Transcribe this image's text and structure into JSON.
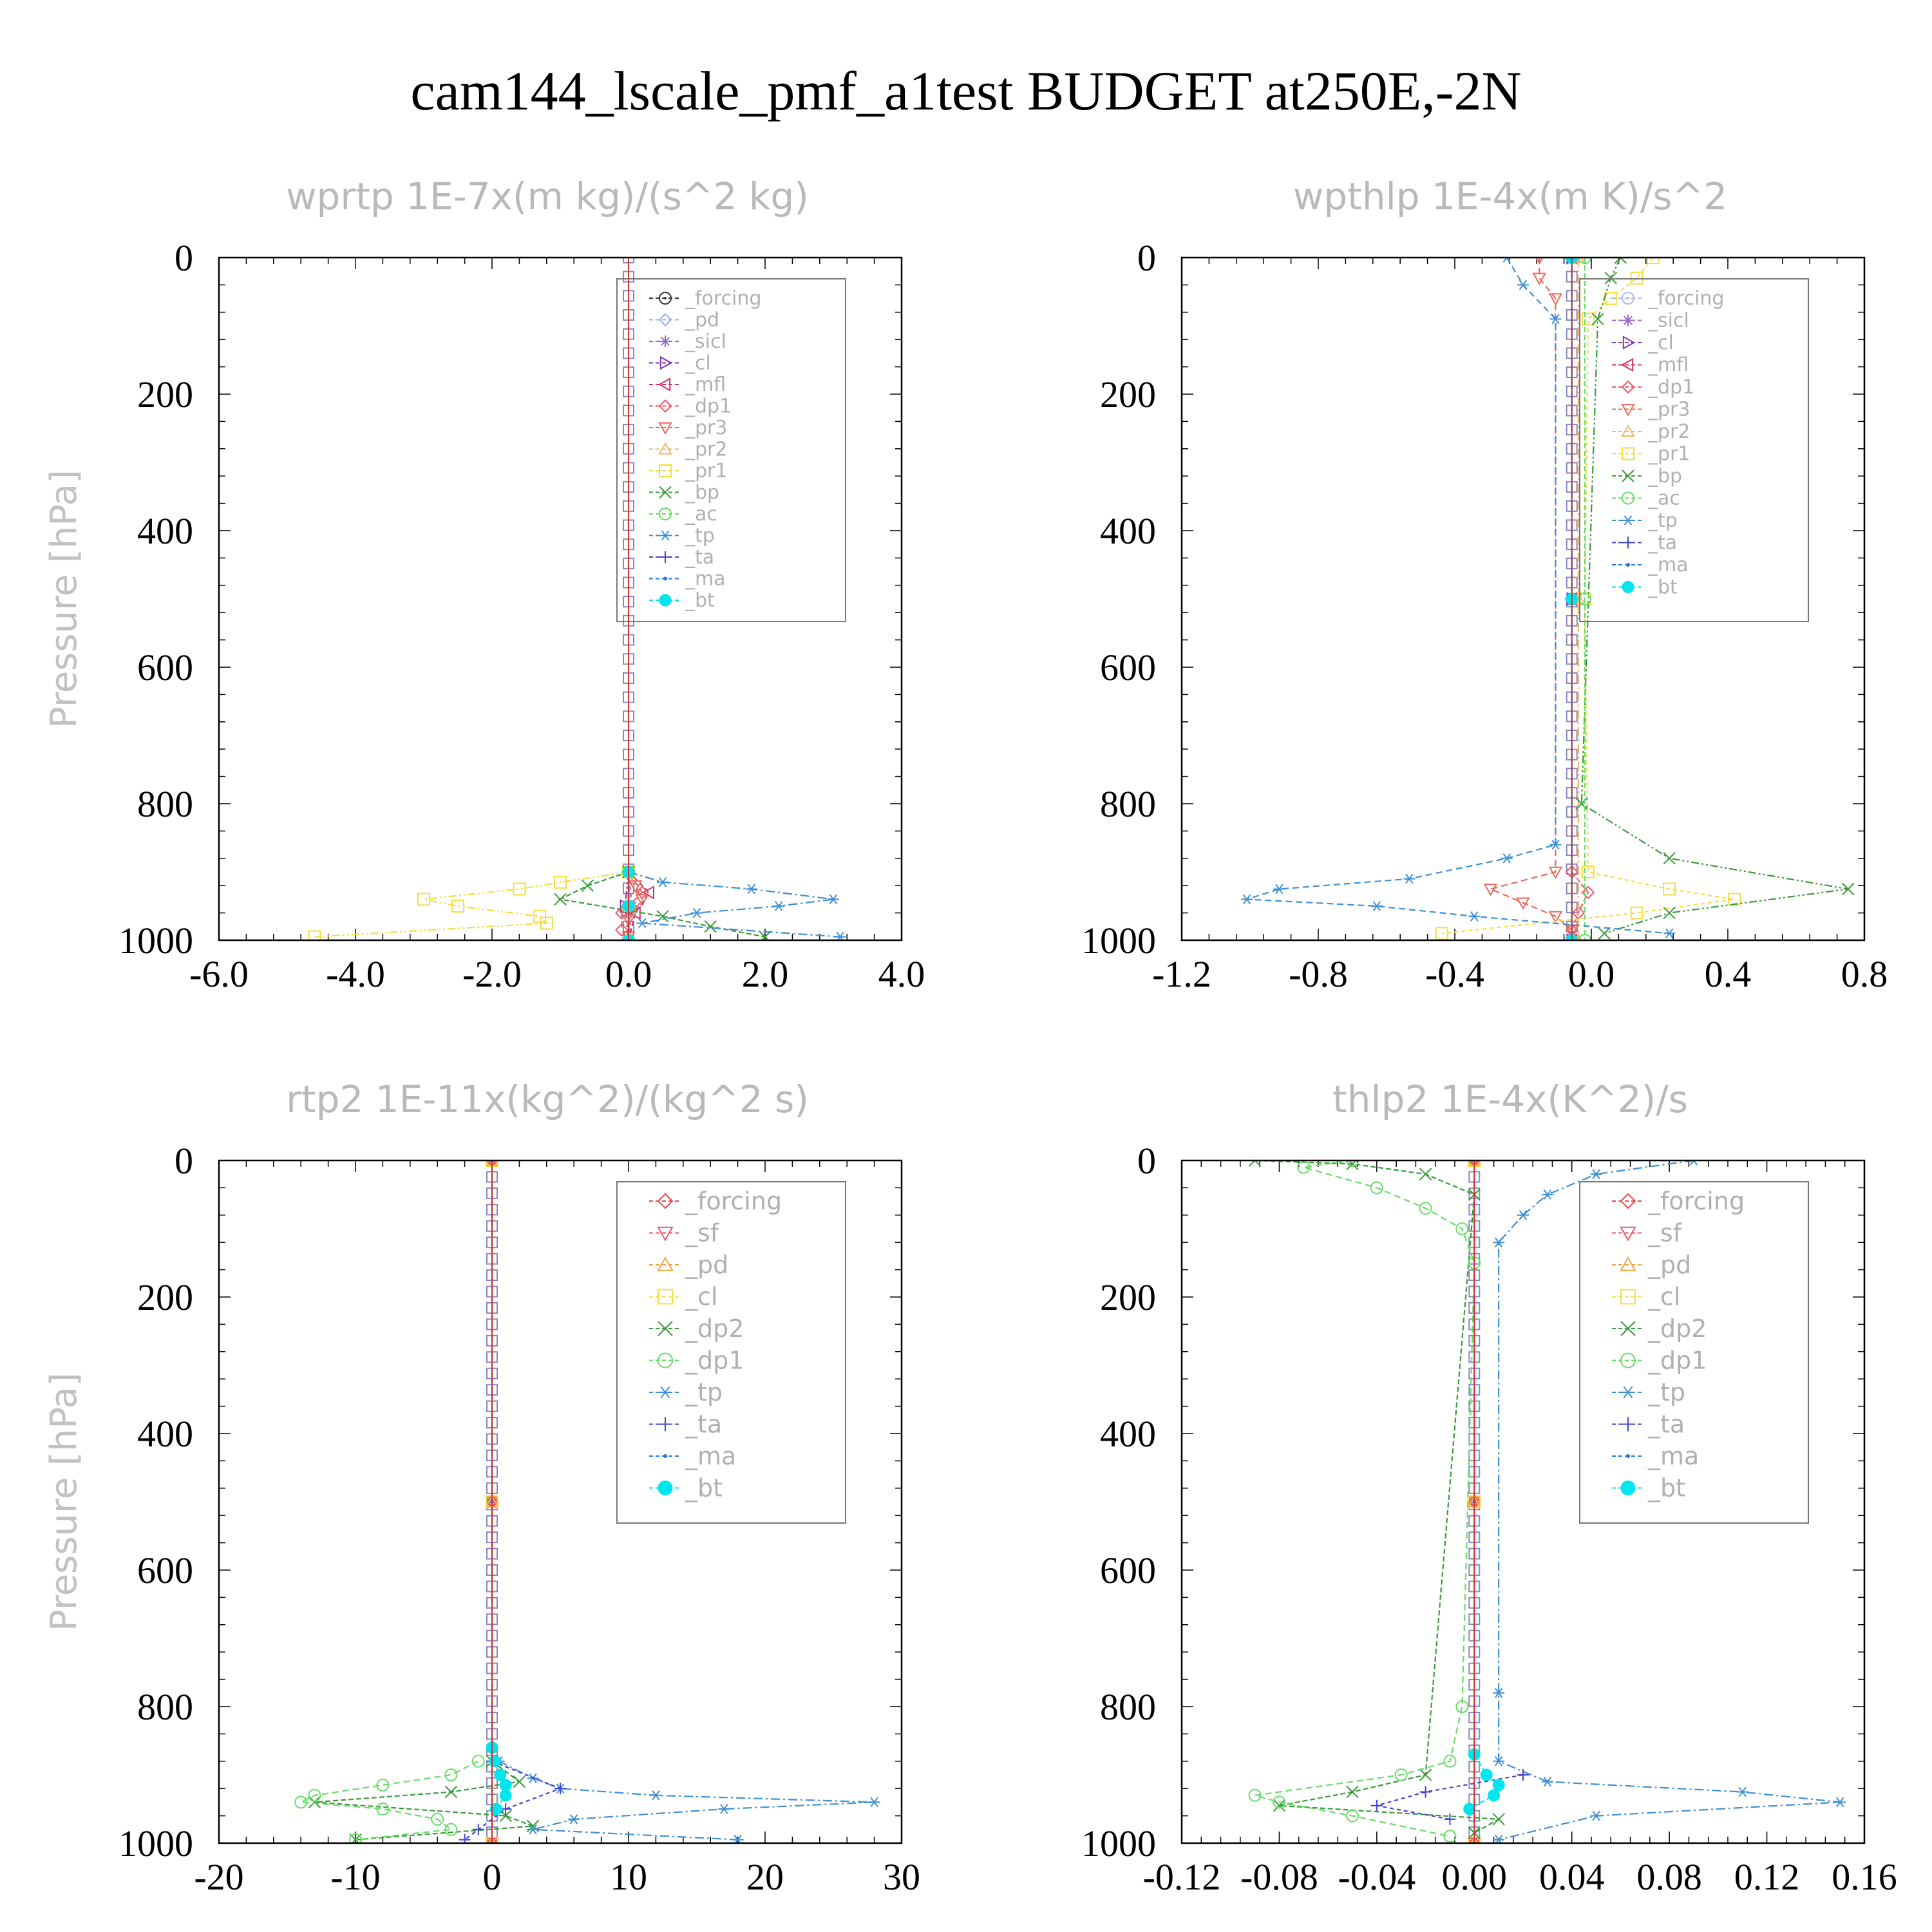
{
  "title": "cam144_lscale_pmf_a1test  BUDGET at250E,-2N",
  "chart_data": [
    {
      "type": "line",
      "title": "wprtp   1E-7x(m kg)/(s^2 kg)",
      "ylabel": "Pressure [hPa]",
      "xlim": [
        -6.0,
        4.0
      ],
      "ylim": [
        0,
        1000
      ],
      "xticks": [
        "-6.0",
        "-4.0",
        "-2.0",
        "0.0",
        "2.0",
        "4.0"
      ],
      "yticks": [
        "0",
        "200",
        "400",
        "600",
        "800",
        "1000"
      ],
      "legend_placement": "top-right",
      "series": [
        {
          "name": "_forcing",
          "color": "#333333",
          "marker": "circle-dot",
          "y": [
            900,
            950,
            1000
          ],
          "x": [
            0.0,
            0.0,
            0.0
          ]
        },
        {
          "name": "_pd",
          "color": "#9ea8f2",
          "marker": "diamond",
          "y": [
            900,
            950,
            1000
          ],
          "x": [
            0.0,
            0.02,
            0.0
          ]
        },
        {
          "name": "_sicl",
          "color": "#9966cc",
          "marker": "star",
          "y": [
            900,
            950,
            1000
          ],
          "x": [
            0.0,
            0.05,
            0.0
          ]
        },
        {
          "name": "_cl",
          "color": "#8833aa",
          "marker": "tri-right",
          "y": [
            900,
            950,
            1000
          ],
          "x": [
            0.0,
            -0.05,
            0.0
          ]
        },
        {
          "name": "_mfl",
          "color": "#cc3366",
          "marker": "tri-left",
          "y": [
            900,
            930,
            960,
            1000
          ],
          "x": [
            0.0,
            0.3,
            0.1,
            0.0
          ]
        },
        {
          "name": "_dp1",
          "color": "#ee5566",
          "marker": "diamond",
          "y": [
            900,
            930,
            960,
            985
          ],
          "x": [
            0.0,
            0.2,
            -0.1,
            -0.1
          ]
        },
        {
          "name": "_pr3",
          "color": "#ee6655",
          "marker": "tri-down",
          "y": [
            900,
            920,
            940,
            970,
            995
          ],
          "x": [
            0.0,
            0.1,
            0.2,
            0.0,
            0.0
          ]
        },
        {
          "name": "_pr2",
          "color": "#f5b563",
          "marker": "tri-up",
          "y": [
            900,
            950,
            1000
          ],
          "x": [
            0.0,
            0.0,
            0.0
          ]
        },
        {
          "name": "_pr1",
          "color": "#f5dd40",
          "marker": "square",
          "y": [
            900,
            915,
            925,
            940,
            950,
            965,
            975,
            995
          ],
          "x": [
            0.0,
            -1.0,
            -1.6,
            -3.0,
            -2.5,
            -1.3,
            -1.2,
            -4.6
          ]
        },
        {
          "name": "_bp",
          "color": "#3a9a3a",
          "marker": "x",
          "y": [
            900,
            920,
            940,
            965,
            980,
            995
          ],
          "x": [
            0.0,
            -0.6,
            -1.0,
            0.5,
            1.2,
            2.0
          ]
        },
        {
          "name": "_ac",
          "color": "#66dd66",
          "marker": "circle",
          "y": [
            900,
            950,
            1000
          ],
          "x": [
            0.0,
            0.0,
            0.0
          ]
        },
        {
          "name": "_tp",
          "color": "#3d8fd6",
          "marker": "asterisk",
          "y": [
            900,
            915,
            925,
            940,
            950,
            960,
            975,
            995
          ],
          "x": [
            0.0,
            0.5,
            1.8,
            3.0,
            2.2,
            1.0,
            0.2,
            3.1
          ]
        },
        {
          "name": "_ta",
          "color": "#4444cc",
          "marker": "plus",
          "y": [
            900,
            950,
            1000
          ],
          "x": [
            0.0,
            0.0,
            0.0
          ]
        },
        {
          "name": "_ma",
          "color": "#2277dd",
          "marker": "dot",
          "y": [
            900,
            950,
            1000
          ],
          "x": [
            0.0,
            0.0,
            0.0
          ]
        },
        {
          "name": "_bt",
          "color": "#00e5ee",
          "marker": "filled-circle",
          "y": [
            900,
            950,
            1000
          ],
          "x": [
            0.0,
            0.0,
            0.0
          ]
        }
      ]
    },
    {
      "type": "line",
      "title": "wpthlp   1E-4x(m K)/s^2",
      "ylabel": "Pressure [hPa]",
      "xlim": [
        -1.2,
        0.9
      ],
      "ylim": [
        0,
        1000
      ],
      "xticks": [
        "-1.2",
        "-0.8",
        "-0.4",
        "0.0",
        "0.4",
        "0.8"
      ],
      "yticks": [
        "0",
        "200",
        "400",
        "600",
        "800",
        "1000"
      ],
      "legend_placement": "top-right",
      "series": [
        {
          "name": "_forcing",
          "color": "#b0b8f0",
          "marker": "circle-dot",
          "y": [
            0,
            500,
            1000
          ],
          "x": [
            0.0,
            0.0,
            0.0
          ]
        },
        {
          "name": "_sicl",
          "color": "#9966cc",
          "marker": "star",
          "y": [
            0,
            500,
            1000
          ],
          "x": [
            0.0,
            0.0,
            0.0
          ]
        },
        {
          "name": "_cl",
          "color": "#8833aa",
          "marker": "tri-right",
          "y": [
            0,
            500,
            1000
          ],
          "x": [
            0.0,
            0.0,
            0.0
          ]
        },
        {
          "name": "_mfl",
          "color": "#cc3366",
          "marker": "tri-left",
          "y": [
            0,
            500,
            1000
          ],
          "x": [
            0.0,
            0.0,
            0.0
          ]
        },
        {
          "name": "_dp1",
          "color": "#ee5566",
          "marker": "diamond",
          "y": [
            900,
            930,
            960,
            985
          ],
          "x": [
            0.0,
            0.05,
            0.02,
            0.0
          ]
        },
        {
          "name": "_pr3",
          "color": "#ee6655",
          "marker": "tri-down",
          "y": [
            0,
            30,
            60,
            900,
            925,
            945,
            965,
            985
          ],
          "x": [
            -0.1,
            -0.1,
            -0.05,
            -0.05,
            -0.25,
            -0.15,
            -0.05,
            0.0
          ]
        },
        {
          "name": "_pr2",
          "color": "#f5b563",
          "marker": "tri-up",
          "y": [
            0,
            500,
            1000
          ],
          "x": [
            0.02,
            0.02,
            0.02
          ]
        },
        {
          "name": "_pr1",
          "color": "#f5dd40",
          "marker": "square",
          "y": [
            0,
            30,
            60,
            90,
            500,
            900,
            925,
            940,
            960,
            990
          ],
          "x": [
            0.25,
            0.2,
            0.12,
            0.05,
            0.04,
            0.05,
            0.3,
            0.5,
            0.2,
            -0.4
          ]
        },
        {
          "name": "_bp",
          "color": "#3a9a3a",
          "marker": "x",
          "y": [
            0,
            30,
            90,
            800,
            880,
            925,
            960,
            990
          ],
          "x": [
            0.15,
            0.12,
            0.08,
            0.03,
            0.3,
            0.85,
            0.3,
            0.1
          ]
        },
        {
          "name": "_ac",
          "color": "#66dd66",
          "marker": "circle",
          "y": [
            0,
            500,
            1000
          ],
          "x": [
            0.04,
            0.04,
            0.04
          ]
        },
        {
          "name": "_tp",
          "color": "#3d8fd6",
          "marker": "asterisk",
          "y": [
            0,
            40,
            90,
            860,
            880,
            910,
            925,
            940,
            950,
            965,
            990
          ],
          "x": [
            -0.2,
            -0.15,
            -0.05,
            -0.05,
            -0.2,
            -0.5,
            -0.9,
            -1.0,
            -0.6,
            -0.3,
            0.3
          ]
        },
        {
          "name": "_ta",
          "color": "#4444cc",
          "marker": "plus",
          "y": [
            0,
            500,
            1000
          ],
          "x": [
            0.0,
            0.0,
            0.0
          ]
        },
        {
          "name": "_ma",
          "color": "#2277dd",
          "marker": "dot",
          "y": [
            0,
            500,
            1000
          ],
          "x": [
            0.0,
            0.0,
            0.0
          ]
        },
        {
          "name": "_bt",
          "color": "#00e5ee",
          "marker": "filled-circle",
          "y": [
            0,
            500,
            1000
          ],
          "x": [
            0.0,
            0.0,
            0.0
          ]
        }
      ]
    },
    {
      "type": "line",
      "title": "rtp2   1E-11x(kg^2)/(kg^2 s)",
      "ylabel": "Pressure [hPa]",
      "xlim": [
        -20,
        30
      ],
      "ylim": [
        0,
        1000
      ],
      "xticks": [
        "-20",
        "-10",
        "0",
        "10",
        "20",
        "30"
      ],
      "yticks": [
        "0",
        "200",
        "400",
        "600",
        "800",
        "1000"
      ],
      "legend_placement": "top-right",
      "series": [
        {
          "name": "_forcing",
          "color": "#ee4444",
          "marker": "diamond",
          "y": [
            0,
            500,
            1000
          ],
          "x": [
            0.0,
            0.0,
            0.0
          ]
        },
        {
          "name": "_sf",
          "color": "#ee5566",
          "marker": "tri-down",
          "y": [
            0,
            500,
            1000
          ],
          "x": [
            0.0,
            0.0,
            0.0
          ]
        },
        {
          "name": "_pd",
          "color": "#f5a040",
          "marker": "tri-up",
          "y": [
            0,
            500,
            1000
          ],
          "x": [
            0.0,
            0.0,
            0.0
          ]
        },
        {
          "name": "_cl",
          "color": "#f5dd40",
          "marker": "square",
          "y": [
            0,
            500,
            1000
          ],
          "x": [
            0.0,
            0.0,
            0.0
          ]
        },
        {
          "name": "_dp2",
          "color": "#3a9a3a",
          "marker": "x",
          "y": [
            880,
            910,
            925,
            940,
            960,
            975,
            995
          ],
          "x": [
            0.0,
            2.0,
            -3.0,
            -13.0,
            1.0,
            3.0,
            -10.0
          ]
        },
        {
          "name": "_dp1",
          "color": "#66dd66",
          "marker": "circle",
          "y": [
            880,
            900,
            915,
            930,
            940,
            950,
            965,
            980,
            995
          ],
          "x": [
            -1.0,
            -3.0,
            -8.0,
            -13.0,
            -14.0,
            -8.0,
            -4.0,
            -3.0,
            -10.0
          ]
        },
        {
          "name": "_tp",
          "color": "#3d8fd6",
          "marker": "asterisk",
          "y": [
            880,
            905,
            920,
            930,
            940,
            950,
            965,
            980,
            995
          ],
          "x": [
            0.5,
            3.0,
            5.0,
            12.0,
            28.0,
            17.0,
            6.0,
            3.0,
            18.0
          ]
        },
        {
          "name": "_ta",
          "color": "#4444cc",
          "marker": "plus",
          "y": [
            880,
            920,
            950,
            980,
            995
          ],
          "x": [
            0.0,
            5.0,
            1.0,
            -1.0,
            -2.0
          ]
        },
        {
          "name": "_ma",
          "color": "#2277dd",
          "marker": "dot",
          "y": [
            0,
            500,
            1000
          ],
          "x": [
            0.0,
            0.0,
            0.0
          ]
        },
        {
          "name": "_bt",
          "color": "#00e5ee",
          "marker": "filled-circle",
          "y": [
            860,
            880,
            900,
            915,
            930,
            950
          ],
          "x": [
            0.0,
            0.2,
            0.6,
            1.0,
            1.0,
            0.3
          ]
        }
      ]
    },
    {
      "type": "line",
      "title": "thlp2   1E-4x(K^2)/s",
      "ylabel": "Pressure [hPa]",
      "xlim": [
        -0.12,
        0.16
      ],
      "ylim": [
        0,
        1000
      ],
      "xticks": [
        "-0.12",
        "-0.08",
        "-0.04",
        "0.00",
        "0.04",
        "0.08",
        "0.12",
        "0.16"
      ],
      "yticks": [
        "0",
        "200",
        "400",
        "600",
        "800",
        "1000"
      ],
      "legend_placement": "top-right",
      "series": [
        {
          "name": "_forcing",
          "color": "#ee4444",
          "marker": "diamond",
          "y": [
            0,
            500,
            1000
          ],
          "x": [
            0.0,
            0.0,
            0.0
          ]
        },
        {
          "name": "_sf",
          "color": "#ee5566",
          "marker": "tri-down",
          "y": [
            0,
            500,
            1000
          ],
          "x": [
            0.0,
            0.0,
            0.0
          ]
        },
        {
          "name": "_pd",
          "color": "#f5a040",
          "marker": "tri-up",
          "y": [
            0,
            500,
            1000
          ],
          "x": [
            0.0,
            0.0,
            0.0
          ]
        },
        {
          "name": "_cl",
          "color": "#f5dd40",
          "marker": "square",
          "y": [
            0,
            500,
            1000
          ],
          "x": [
            0.0,
            0.0,
            0.0
          ]
        },
        {
          "name": "_dp2",
          "color": "#3a9a3a",
          "marker": "x",
          "y": [
            0,
            5,
            20,
            50,
            900,
            925,
            945,
            965,
            985
          ],
          "x": [
            -0.09,
            -0.05,
            -0.02,
            0.0,
            -0.02,
            -0.05,
            -0.08,
            0.01,
            0.0
          ]
        },
        {
          "name": "_dp1",
          "color": "#66dd66",
          "marker": "circle",
          "y": [
            0,
            10,
            40,
            70,
            100,
            150,
            800,
            880,
            900,
            930,
            940,
            960,
            990
          ],
          "x": [
            -0.05,
            -0.07,
            -0.04,
            -0.02,
            -0.005,
            0.0,
            -0.005,
            -0.01,
            -0.03,
            -0.09,
            -0.08,
            -0.05,
            -0.01
          ]
        },
        {
          "name": "_tp",
          "color": "#3d8fd6",
          "marker": "asterisk",
          "y": [
            0,
            20,
            50,
            80,
            120,
            780,
            880,
            910,
            925,
            940,
            960,
            995
          ],
          "x": [
            0.09,
            0.05,
            0.03,
            0.02,
            0.01,
            0.01,
            0.01,
            0.03,
            0.11,
            0.15,
            0.05,
            0.01
          ]
        },
        {
          "name": "_ta",
          "color": "#4444cc",
          "marker": "plus",
          "y": [
            900,
            925,
            945,
            965
          ],
          "x": [
            0.02,
            -0.02,
            -0.04,
            -0.01
          ]
        },
        {
          "name": "_ma",
          "color": "#2277dd",
          "marker": "dot",
          "y": [
            0,
            500,
            1000
          ],
          "x": [
            0.0,
            0.0,
            0.0
          ]
        },
        {
          "name": "_bt",
          "color": "#00e5ee",
          "marker": "filled-circle",
          "y": [
            870,
            900,
            915,
            930,
            950
          ],
          "x": [
            0.0,
            0.005,
            0.01,
            0.008,
            -0.002
          ]
        }
      ]
    }
  ]
}
